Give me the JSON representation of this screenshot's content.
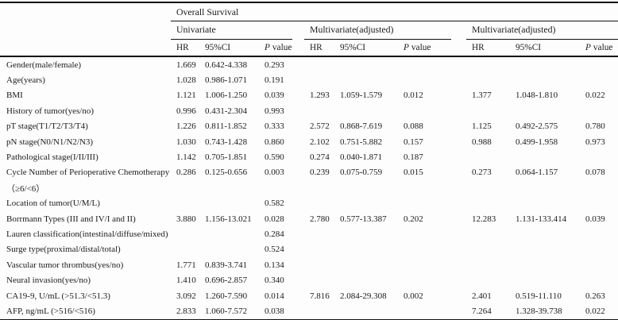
{
  "table": {
    "span_header": "Overall Survival",
    "groups": [
      {
        "label": "Univariate"
      },
      {
        "label": "Multivariate(adjusted)"
      },
      {
        "label": "Multivariate(adjusted)"
      }
    ],
    "col_hr": "HR",
    "col_ci": "95%CI",
    "col_p_symbol": "P",
    "col_p_word": "value",
    "rows": [
      {
        "label": "Gender(male/female)",
        "cells": [
          "1.669",
          "0.642-4.338",
          "0.293",
          "",
          "",
          "",
          "",
          "",
          ""
        ]
      },
      {
        "label": "Age(years)",
        "cells": [
          "1.028",
          "0.986-1.071",
          "0.191",
          "",
          "",
          "",
          "",
          "",
          ""
        ]
      },
      {
        "label": "BMI",
        "cells": [
          "1.121",
          "1.006-1.250",
          "0.039",
          "1.293",
          "1.059-1.579",
          "0.012",
          "1.377",
          "1.048-1.810",
          "0.022"
        ]
      },
      {
        "label": "History of tumor(yes/no)",
        "cells": [
          "0.996",
          "0.431-2.304",
          "0.993",
          "",
          "",
          "",
          "",
          "",
          ""
        ]
      },
      {
        "label": "pT stage(T1/T2/T3/T4)",
        "cells": [
          "1.226",
          "0.811-1.852",
          "0.333",
          "2.572",
          "0.868-7.619",
          "0.088",
          "1.125",
          "0.492-2.575",
          "0.780"
        ]
      },
      {
        "label": "pN stage(N0/N1/N2/N3)",
        "cells": [
          "1.030",
          "0.743-1.428",
          "0.860",
          "2.102",
          "0.751-5.882",
          "0.157",
          "0.988",
          "0.499-1.958",
          "0.973"
        ]
      },
      {
        "label": "Pathological stage(I/II/III)",
        "cells": [
          "1.142",
          "0.705-1.851",
          "0.590",
          "0.274",
          "0.040-1.871",
          "0.187",
          "",
          "",
          ""
        ]
      },
      {
        "label": "Cycle Number of Perioperative Chemotherapy",
        "cells": [
          "0.286",
          "0.125-0.656",
          "0.003",
          "0.239",
          "0.075-0.759",
          "0.015",
          "0.273",
          "0.064-1.157",
          "0.078"
        ]
      },
      {
        "label": "（≥6/<6）",
        "cells": [
          "",
          "",
          "",
          "",
          "",
          "",
          "",
          "",
          ""
        ]
      },
      {
        "label": "Location of tumor(U/M/L)",
        "cells": [
          "",
          "",
          "0.582",
          "",
          "",
          "",
          "",
          "",
          ""
        ]
      },
      {
        "label": "Borrmann Types (III and IV/I and II)",
        "cells": [
          "3.880",
          "1.156-13.021",
          "0.028",
          "2.780",
          "0.577-13.387",
          "0.202",
          "12.283",
          "1.131-133.414",
          "0.039"
        ]
      },
      {
        "label": "Lauren classification(intestinal/diffuse/mixed)",
        "cells": [
          "",
          "",
          "0.284",
          "",
          "",
          "",
          "",
          "",
          ""
        ]
      },
      {
        "label": "Surge type(proximal/distal/total)",
        "cells": [
          "",
          "",
          "0.524",
          "",
          "",
          "",
          "",
          "",
          ""
        ]
      },
      {
        "label": "Vascular tumor thrombus(yes/no)",
        "cells": [
          "1.771",
          "0.839-3.741",
          "0.134",
          "",
          "",
          "",
          "",
          "",
          ""
        ]
      },
      {
        "label": "Neural invasion(yes/no)",
        "cells": [
          "1.410",
          "0.696-2.857",
          "0.340",
          "",
          "",
          "",
          "",
          "",
          ""
        ]
      },
      {
        "label": "CA19-9, U/mL (>51.3/<51.3)",
        "cells": [
          "3.092",
          "1.260-7.590",
          "0.014",
          "7.816",
          "2.084-29.308",
          "0.002",
          "2.401",
          "0.519-11.110",
          "0.263"
        ]
      },
      {
        "label": "AFP, ng/mL (>516/<516)",
        "cells": [
          "2.833",
          "1.060-7.572",
          "0.038",
          "",
          "",
          "",
          "7.264",
          "1.328-39.738",
          "0.022"
        ]
      }
    ]
  },
  "colors": {
    "background": "#fdfdfd",
    "text": "#1b1b1b",
    "rule": "#111111"
  }
}
